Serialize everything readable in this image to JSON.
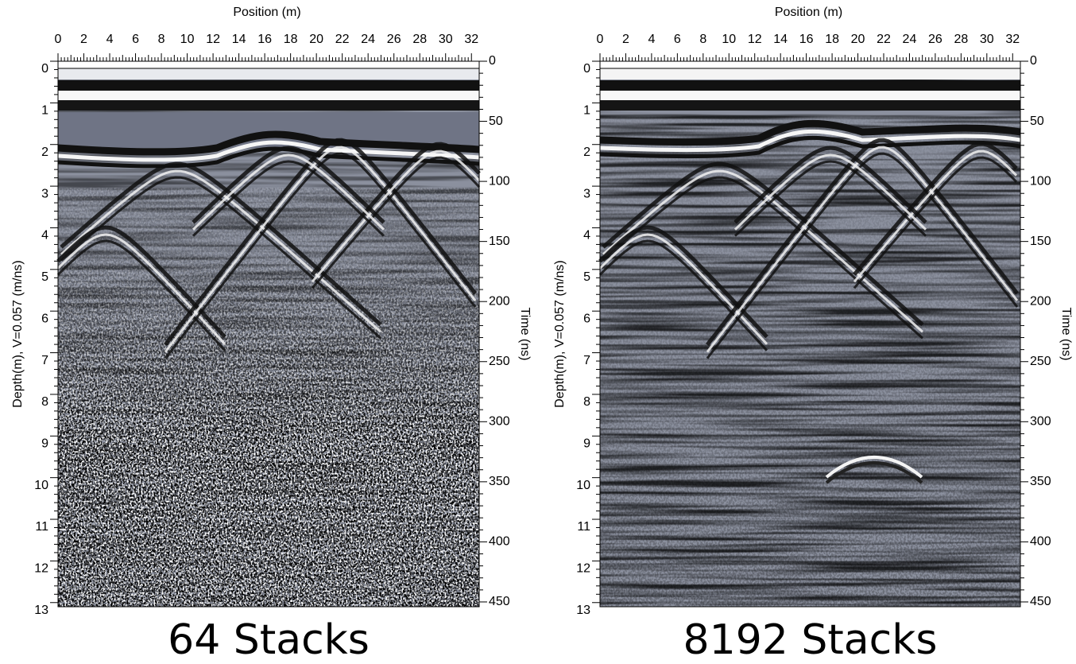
{
  "panels": [
    {
      "x_label": "Position (m)",
      "y_label": "Depth(m), V=0.057 (m/ns)",
      "y2_label": "Time (ns)",
      "caption": "64 Stacks",
      "xlim": [
        0,
        32.6
      ],
      "xticks": [
        0,
        2,
        4,
        6,
        8,
        10,
        12,
        14,
        16,
        18,
        20,
        22,
        24,
        26,
        28,
        30,
        32
      ],
      "ylim": [
        0,
        13.1
      ],
      "yticks": [
        0,
        1,
        2,
        3,
        4,
        5,
        6,
        7,
        8,
        9,
        10,
        11,
        12,
        13
      ],
      "y2lim": [
        0,
        454
      ],
      "y2ticks": [
        0,
        50,
        100,
        150,
        200,
        250,
        300,
        350,
        400,
        450
      ]
    },
    {
      "x_label": "Position (m)",
      "y_label": "Depth(m), V=0.057 (m/ns)",
      "y2_label": "Time (ns)",
      "caption": "8192 Stacks",
      "xlim": [
        0,
        32.6
      ],
      "xticks": [
        0,
        2,
        4,
        6,
        8,
        10,
        12,
        14,
        16,
        18,
        20,
        22,
        24,
        26,
        28,
        30,
        32
      ],
      "ylim": [
        0,
        13.1
      ],
      "yticks": [
        0,
        1,
        2,
        3,
        4,
        5,
        6,
        7,
        8,
        9,
        10,
        11,
        12,
        13
      ],
      "y2lim": [
        0,
        454
      ],
      "y2ticks": [
        0,
        50,
        100,
        150,
        200,
        250,
        300,
        350,
        400,
        450
      ]
    }
  ]
}
